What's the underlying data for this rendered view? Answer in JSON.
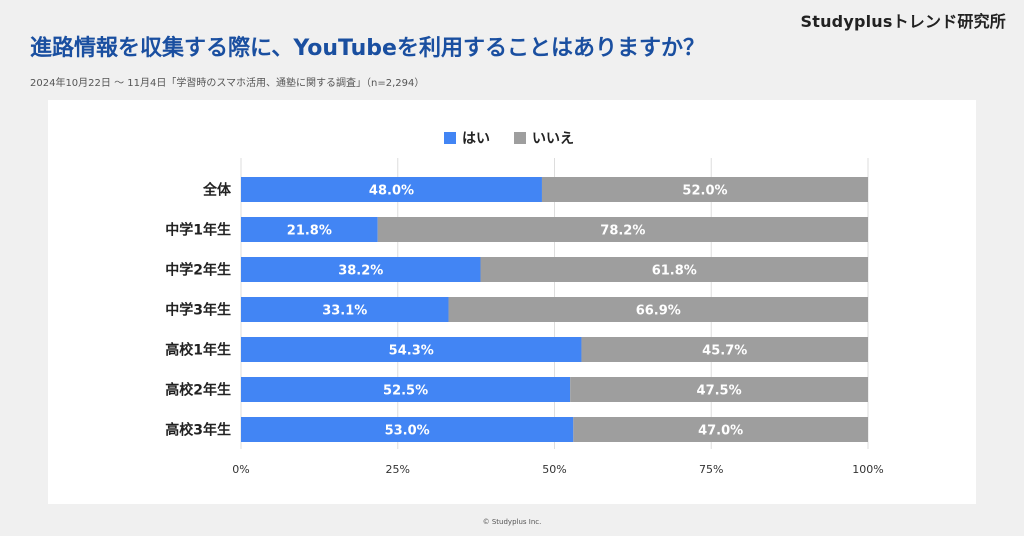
{
  "brand": "Studyplusトレンド研究所",
  "title": "進路情報を収集する際に、YouTubeを利用することはありますか？",
  "subtitle": "2024年10月22日 〜 11月4日「学習時のスマホ活用、通塾に関する調査」（n=2,294）",
  "copyright": "© Studyplus Inc.",
  "colors": {
    "yes": "#4285f4",
    "no": "#9e9e9e"
  },
  "chart_data": {
    "type": "bar",
    "orientation": "horizontal",
    "stacked": true,
    "categories": [
      "全体",
      "中学1年生",
      "中学2年生",
      "中学3年生",
      "高校1年生",
      "高校2年生",
      "高校3年生"
    ],
    "series": [
      {
        "name": "はい",
        "values": [
          48.0,
          21.8,
          38.2,
          33.1,
          54.3,
          52.5,
          53.0
        ]
      },
      {
        "name": "いいえ",
        "values": [
          52.0,
          78.2,
          61.8,
          66.9,
          45.7,
          47.5,
          47.0
        ]
      }
    ],
    "data_labels": [
      [
        "48.0%",
        "21.8%",
        "38.2%",
        "33.1%",
        "54.3%",
        "52.5%",
        "53.0%"
      ],
      [
        "52.0%",
        "78.2%",
        "61.8%",
        "66.9%",
        "45.7%",
        "47.5%",
        "47.0%"
      ]
    ],
    "xticks": [
      "0%",
      "25%",
      "50%",
      "75%",
      "100%"
    ],
    "xlim": [
      0,
      100
    ],
    "legend_position": "top",
    "grid": true
  }
}
